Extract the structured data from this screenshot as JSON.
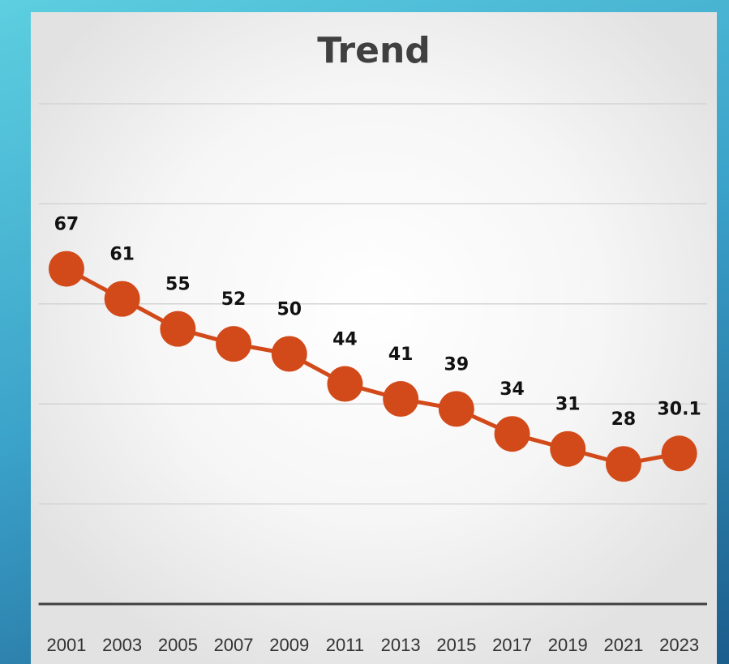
{
  "chart_data": {
    "type": "line",
    "title": "Trend",
    "categories": [
      "2001",
      "2003",
      "2005",
      "2007",
      "2009",
      "2011",
      "2013",
      "2015",
      "2017",
      "2019",
      "2021",
      "2023"
    ],
    "series": [
      {
        "name": "Trend",
        "color": "#d24a1a",
        "values": [
          67,
          61,
          55,
          52,
          50,
          44,
          41,
          39,
          34,
          31,
          28,
          30.1
        ]
      }
    ],
    "ylim": [
      0,
      100
    ],
    "yticks": [
      0,
      20,
      40,
      60,
      80,
      100
    ],
    "grid": true,
    "data_labels": true
  }
}
